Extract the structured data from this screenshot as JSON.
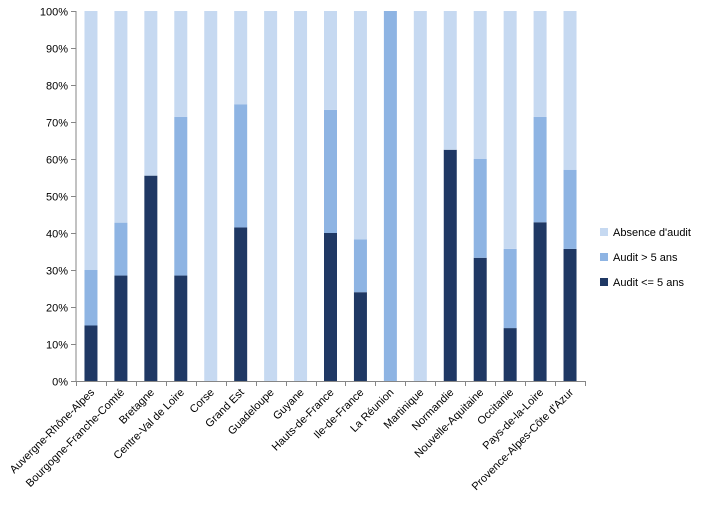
{
  "chart_data": {
    "type": "bar",
    "stacked": true,
    "percent": true,
    "categories": [
      "Auvergne-Rhône-Alpes",
      "Bourgogne-Franche-Comté",
      "Bretagne",
      "Centre-Val de Loire",
      "Corse",
      "Grand Est",
      "Guadeloupe",
      "Guyane",
      "Hauts-de-France",
      "Ile-de-France",
      "La Réunion",
      "Martinique",
      "Normandie",
      "Nouvelle-Aquitaine",
      "Occitanie",
      "Pays-de-la-Loire",
      "Provence-Alpes-Côte d'Azur"
    ],
    "series": [
      {
        "name": "Audit <= 5 ans",
        "color": "#1f3864",
        "values": [
          15,
          28.5,
          55.5,
          28.5,
          0,
          41.5,
          0,
          0,
          40,
          24,
          0,
          0,
          62.5,
          33.3,
          14.3,
          42.9,
          35.7
        ]
      },
      {
        "name": "Audit > 5 ans",
        "color": "#8eb4e3",
        "values": [
          15,
          14.3,
          0,
          42.9,
          0,
          33.3,
          0,
          0,
          33.3,
          14.3,
          100,
          0,
          0,
          26.7,
          21.4,
          28.5,
          21.4
        ]
      },
      {
        "name": "Absence d'audit",
        "color": "#c6d9f1",
        "values": [
          70,
          57.2,
          44.5,
          28.6,
          100,
          25.2,
          100,
          100,
          26.7,
          61.7,
          0,
          100,
          37.5,
          40,
          64.3,
          28.6,
          42.9
        ]
      }
    ],
    "yticks": [
      "0%",
      "10%",
      "20%",
      "30%",
      "40%",
      "50%",
      "60%",
      "70%",
      "80%",
      "90%",
      "100%"
    ],
    "ylim": [
      0,
      100
    ],
    "legend_order": [
      "Absence d'audit",
      "Audit > 5 ans",
      "Audit <= 5 ans"
    ],
    "legend_position": "right",
    "grid": false
  }
}
